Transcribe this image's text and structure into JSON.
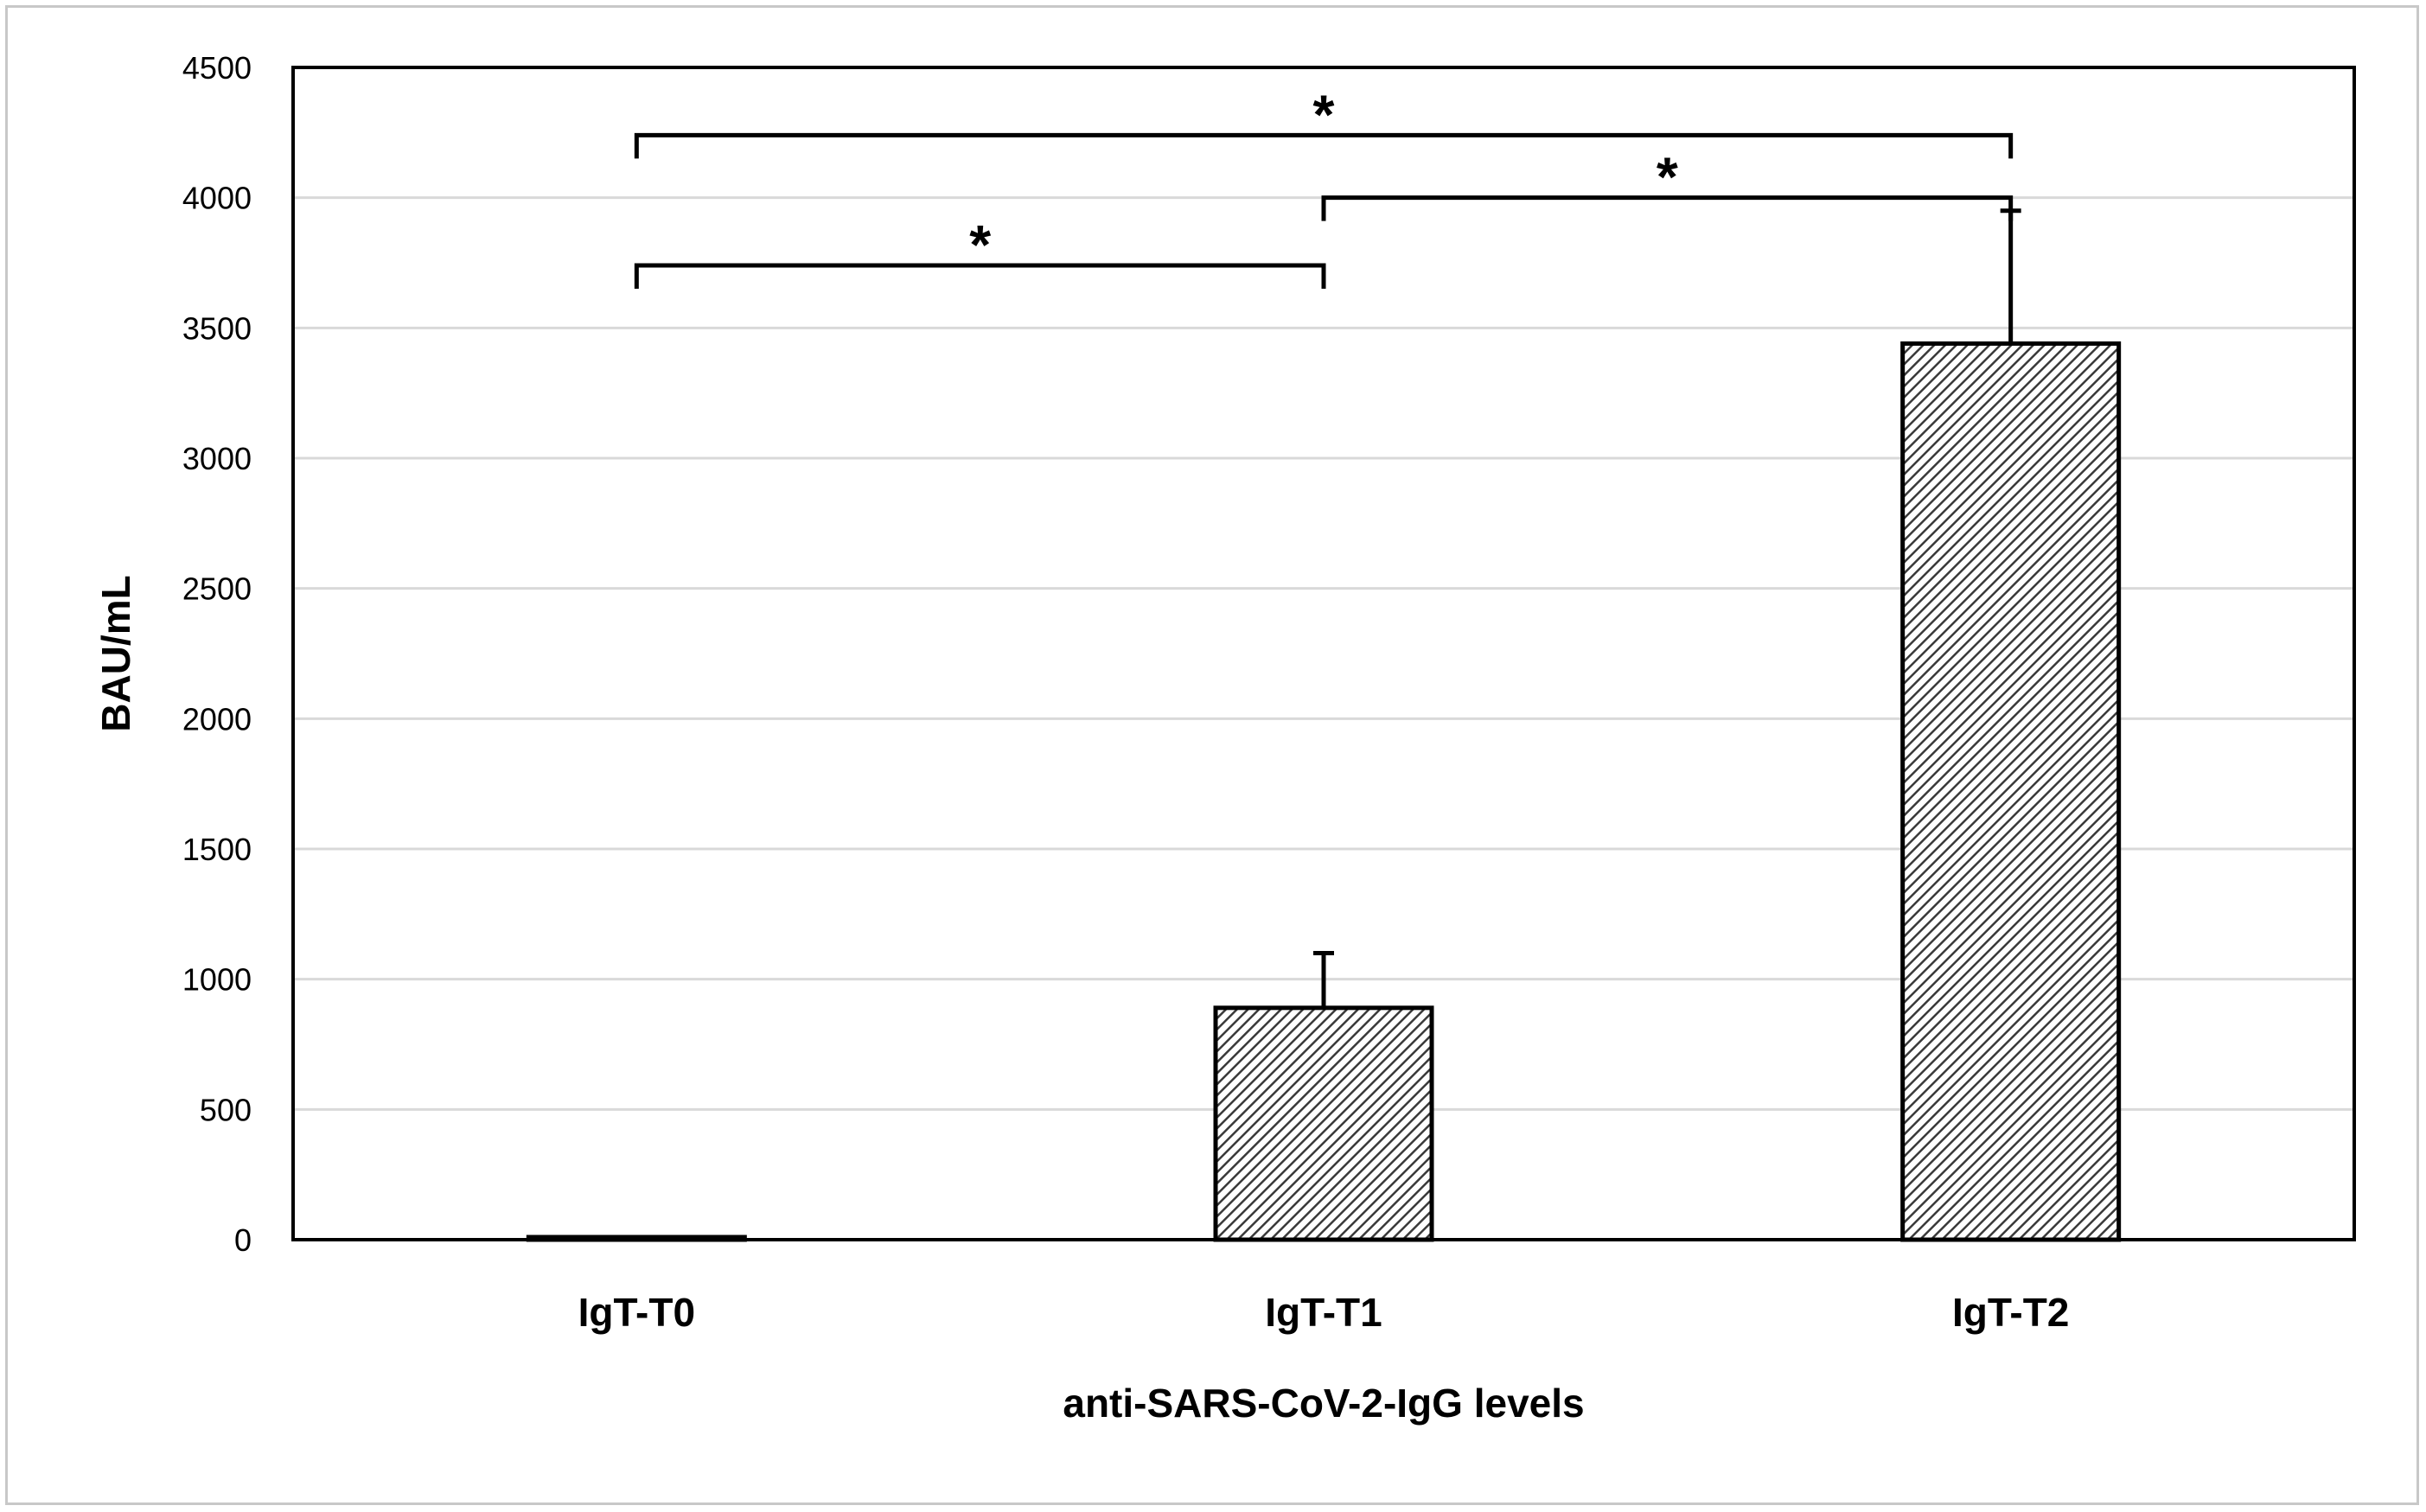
{
  "chart_data": {
    "type": "bar",
    "title": "",
    "xlabel": "anti-SARS-CoV-2-IgG levels",
    "ylabel": "BAU/mL",
    "categories": [
      "IgT-T0",
      "IgT-T1",
      "IgT-T2"
    ],
    "values": [
      8,
      890,
      3440
    ],
    "error_upper": [
      0,
      1100,
      3950
    ],
    "ylim": [
      0,
      4500
    ],
    "yticks": [
      0,
      500,
      1000,
      1500,
      2000,
      2500,
      3000,
      3500,
      4000,
      4500
    ],
    "grid": "horizontal",
    "bar_fill": "hatched",
    "significance": [
      {
        "from": "IgT-T0",
        "to": "IgT-T1",
        "label": "*",
        "y": 3740
      },
      {
        "from": "IgT-T0",
        "to": "IgT-T2",
        "label": "*",
        "y": 4240
      },
      {
        "from": "IgT-T1",
        "to": "IgT-T2",
        "label": "*",
        "y": 4000
      }
    ],
    "colors": {
      "bar_stroke": "#000000",
      "hatch": "#3a3a3a",
      "grid": "#d9d9d9",
      "axis": "#000000"
    }
  }
}
